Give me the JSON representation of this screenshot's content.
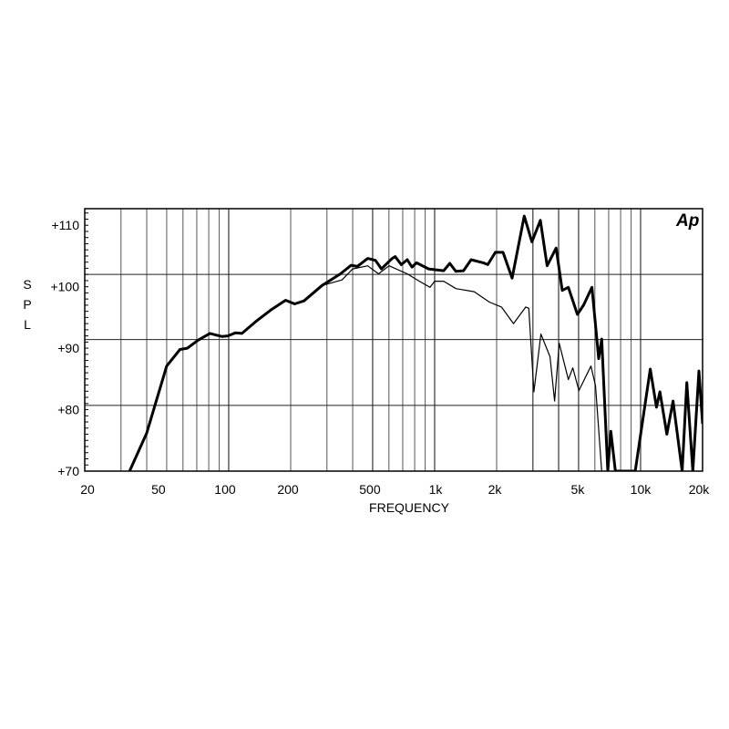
{
  "chart_data": {
    "type": "line",
    "title": "",
    "xlabel": "FREQUENCY",
    "ylabel": "SPL",
    "logo": "Ap",
    "x_scale": "log",
    "xlim": [
      20,
      20000
    ],
    "ylim": [
      70,
      112.7
    ],
    "grid": true,
    "x_ticks": [
      {
        "value": 20,
        "label": "20"
      },
      {
        "value": 50,
        "label": "50"
      },
      {
        "value": 100,
        "label": "100"
      },
      {
        "value": 200,
        "label": "200"
      },
      {
        "value": 500,
        "label": "500"
      },
      {
        "value": 1000,
        "label": "1k"
      },
      {
        "value": 2000,
        "label": "2k"
      },
      {
        "value": 5000,
        "label": "5k"
      },
      {
        "value": 10000,
        "label": "10k"
      },
      {
        "value": 20000,
        "label": "20k"
      }
    ],
    "y_ticks": [
      {
        "value": 110,
        "label": "+110"
      },
      {
        "value": 100,
        "label": "+100"
      },
      {
        "value": 90,
        "label": "+90"
      },
      {
        "value": 80,
        "label": "+80"
      },
      {
        "value": 70,
        "label": "+70"
      }
    ],
    "x_gridlines": [
      30,
      40,
      50,
      60,
      70,
      80,
      90,
      100,
      200,
      300,
      400,
      500,
      600,
      700,
      800,
      900,
      1000,
      2000,
      3000,
      4000,
      5000,
      6000,
      7000,
      8000,
      9000,
      10000
    ],
    "y_gridlines": [
      70,
      80.7,
      91.4,
      102,
      112.7
    ],
    "colors": {
      "line": "#000000",
      "grid": "#000000"
    },
    "series": [
      {
        "style": "thick",
        "x": [
          33,
          40,
          50,
          58,
          63,
          71,
          81,
          93,
          99,
          108,
          116,
          135,
          160,
          189,
          209,
          232,
          284,
          349,
          393,
          421,
          473,
          516,
          552,
          622,
          643,
          689,
          736,
          776,
          817,
          935,
          1107,
          1185,
          1268,
          1380,
          1503,
          1722,
          1811,
          1972,
          2148,
          2378,
          2722,
          2966,
          3262,
          3516,
          3890,
          4167,
          4457,
          4932,
          5284,
          5808,
          6260,
          6472,
          6934,
          7168,
          7544,
          9416,
          11140,
          11940,
          12420,
          13420,
          14380,
          15920,
          16760,
          17940,
          19200,
          20000
        ],
        "y": [
          70,
          76.2,
          87.1,
          89.8,
          90,
          91.3,
          92.4,
          91.9,
          92,
          92.5,
          92.4,
          94.3,
          96.2,
          97.8,
          97.2,
          97.7,
          100.2,
          102.1,
          103.5,
          103.3,
          104.6,
          104.3,
          102.9,
          104.6,
          104.9,
          103.6,
          104.4,
          103.2,
          103.9,
          102.9,
          102.6,
          103.8,
          102.5,
          102.6,
          104.4,
          103.9,
          103.6,
          105.6,
          105.6,
          101.4,
          111.5,
          107.3,
          110.8,
          103.4,
          106.3,
          99.4,
          99.9,
          95.5,
          97,
          99.9,
          88.3,
          91.5,
          70,
          76.5,
          70,
          70,
          86.6,
          80.4,
          82.9,
          76,
          81.4,
          70,
          84.4,
          70,
          86.3,
          77.7
        ]
      },
      {
        "style": "thin",
        "x": [
          33,
          40,
          50,
          58,
          63,
          71,
          81,
          93,
          99,
          108,
          116,
          135,
          160,
          189,
          209,
          232,
          284,
          355,
          400,
          473,
          534,
          601,
          736,
          843,
          950,
          1000,
          1107,
          1268,
          1556,
          1844,
          2112,
          2416,
          2772,
          2866,
          3034,
          3282,
          3632,
          3822,
          4028,
          4457,
          4688,
          5020,
          5740,
          6040,
          6472
        ],
        "y": [
          70,
          76.2,
          87.1,
          89.8,
          90,
          91.3,
          92.4,
          91.9,
          92,
          92.5,
          92.4,
          94.3,
          96.2,
          97.8,
          97.2,
          97.7,
          100.2,
          101.1,
          102.9,
          103.4,
          102.1,
          103.4,
          102.1,
          100.9,
          99.9,
          100.9,
          100.9,
          99.7,
          99.2,
          97.5,
          96.7,
          94,
          96.7,
          96.5,
          82.9,
          92.3,
          88.6,
          81.4,
          90.8,
          84.9,
          86.8,
          83.1,
          87.1,
          83.9,
          70
        ]
      }
    ]
  }
}
